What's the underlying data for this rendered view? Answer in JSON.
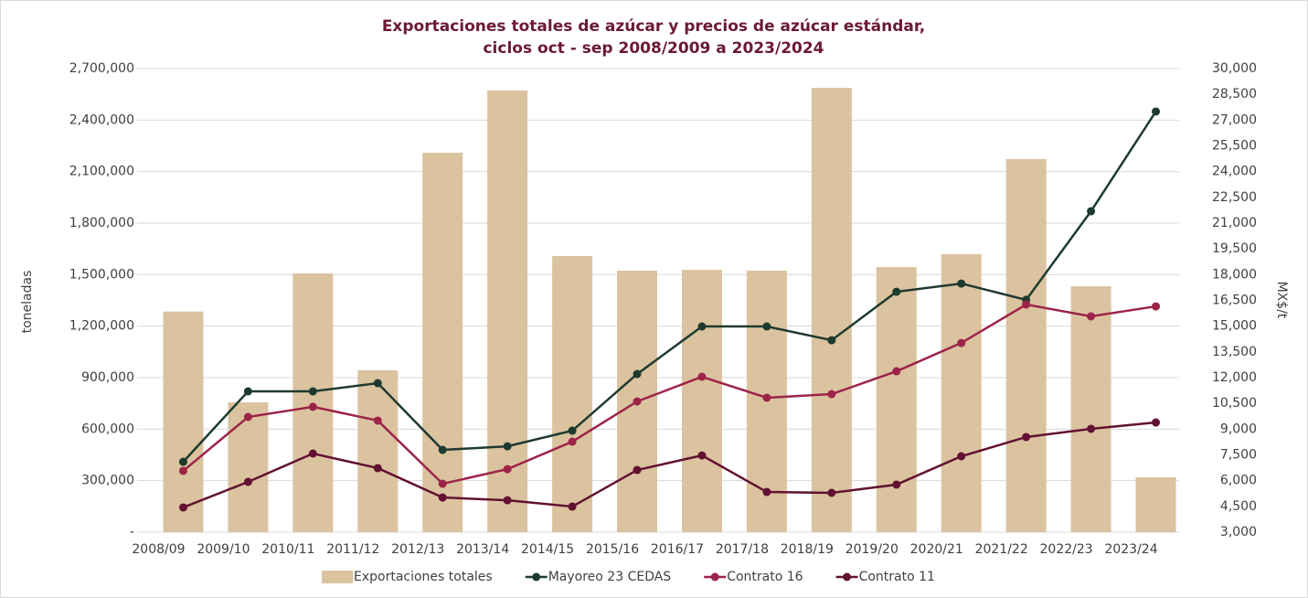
{
  "chart_data": {
    "type": "bar_line",
    "title": [
      "Exportaciones totales de azúcar y precios de azúcar estándar,",
      "ciclos oct - sep 2008/2009 a 2023/2024"
    ],
    "y_label": "toneladas",
    "y2_label": "MX$/t",
    "categories": [
      "2008/09",
      "2009/10",
      "2010/11",
      "2011/12",
      "2012/13",
      "2013/14",
      "2014/15",
      "2015/16",
      "2016/17",
      "2017/18",
      "2018/19",
      "2019/20",
      "2020/21",
      "2021/22",
      "2022/23",
      "2023/24"
    ],
    "series": [
      {
        "name": "Exportaciones totales",
        "type": "bar",
        "color": "#dbc3a0",
        "values": [
          1285000,
          756000,
          1507000,
          943000,
          2210000,
          2572000,
          1608000,
          1523000,
          1528000,
          1523000,
          2588000,
          1544000,
          1619000,
          2173000,
          1432000,
          320000
        ]
      },
      {
        "name": "Mayoreo 23 CEDAS",
        "type": "line",
        "axis": "y2",
        "color": "#1e3a2f",
        "values": [
          7100,
          11200,
          11200,
          11680,
          7790,
          8000,
          8910,
          12210,
          14980,
          14980,
          14180,
          17000,
          17480,
          16530,
          21690,
          27500
        ]
      },
      {
        "name": "Contrato 16",
        "type": "line",
        "axis": "y2",
        "color": "#9d2449",
        "values": [
          6570,
          9710,
          10300,
          9500,
          5820,
          6670,
          8270,
          10610,
          12050,
          10830,
          11040,
          12370,
          14020,
          16260,
          15570,
          16150
        ]
      },
      {
        "name": "Contrato 11",
        "type": "line",
        "axis": "y2",
        "color": "#621132",
        "values": [
          4440,
          5930,
          7580,
          6730,
          5020,
          4860,
          4490,
          6620,
          7470,
          5340,
          5290,
          5770,
          7420,
          8540,
          9020,
          9390
        ]
      }
    ],
    "ylim": [
      0,
      2700000
    ],
    "yticks": [
      {
        "value": 0,
        "label": "-"
      },
      {
        "value": 300000,
        "label": "300,000"
      },
      {
        "value": 600000,
        "label": "600,000"
      },
      {
        "value": 900000,
        "label": "900,000"
      },
      {
        "value": 1200000,
        "label": "1,200,000"
      },
      {
        "value": 1500000,
        "label": "1,500,000"
      },
      {
        "value": 1800000,
        "label": "1,800,000"
      },
      {
        "value": 2100000,
        "label": "2,100,000"
      },
      {
        "value": 2400000,
        "label": "2,400,000"
      },
      {
        "value": 2700000,
        "label": "2,700,000"
      }
    ],
    "y2lim": [
      3000,
      30000
    ],
    "y2ticks": [
      {
        "value": 3000,
        "label": "3,000"
      },
      {
        "value": 4500,
        "label": "4,500"
      },
      {
        "value": 6000,
        "label": "6,000"
      },
      {
        "value": 7500,
        "label": "7,500"
      },
      {
        "value": 9000,
        "label": "9,000"
      },
      {
        "value": 10500,
        "label": "10,500"
      },
      {
        "value": 12000,
        "label": "12,000"
      },
      {
        "value": 13500,
        "label": "13,500"
      },
      {
        "value": 15000,
        "label": "15,000"
      },
      {
        "value": 16500,
        "label": "16,500"
      },
      {
        "value": 18000,
        "label": "18,000"
      },
      {
        "value": 19500,
        "label": "19,500"
      },
      {
        "value": 21000,
        "label": "21,000"
      },
      {
        "value": 22500,
        "label": "22,500"
      },
      {
        "value": 24000,
        "label": "24,000"
      },
      {
        "value": 25500,
        "label": "25,500"
      },
      {
        "value": 27000,
        "label": "27,000"
      },
      {
        "value": 28500,
        "label": "28,500"
      },
      {
        "value": 30000,
        "label": "30,000"
      }
    ],
    "grid": true,
    "legend": "bottom"
  }
}
